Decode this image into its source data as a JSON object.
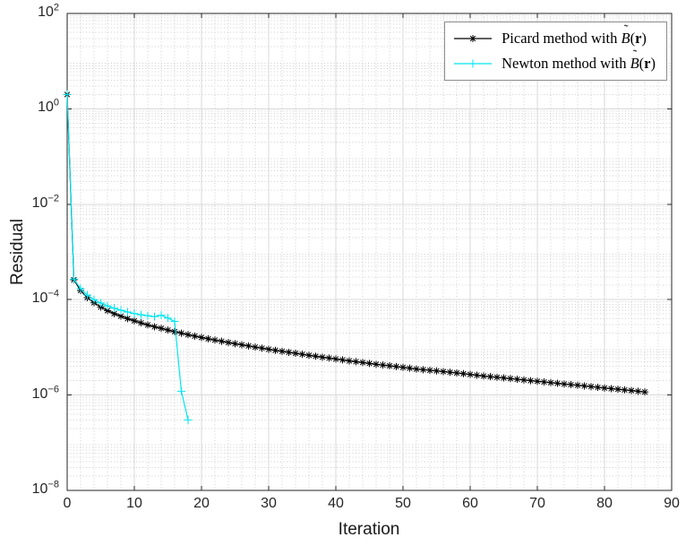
{
  "figure": {
    "background": "#ffffff",
    "axes": {
      "box_color": "#262626",
      "tick_color": "#262626",
      "label_color": "#1a1a1a",
      "major_grid_color": "#d9d9d9",
      "minor_grid_color": "#cfcfcf"
    }
  },
  "chart_data": {
    "type": "line",
    "title": "",
    "xlabel": "Iteration",
    "ylabel": "Residual",
    "y_scale": "log",
    "xlim": [
      0,
      90
    ],
    "ylim": [
      1e-08,
      100
    ],
    "x_ticks": [
      0,
      10,
      20,
      30,
      40,
      50,
      60,
      70,
      80,
      90
    ],
    "y_tick_exponents": [
      2,
      0,
      -2,
      -4,
      -6,
      -8
    ],
    "x_minor_step": 2,
    "grid": "on",
    "minor_grid": "on",
    "legend_position": "northeast",
    "series": [
      {
        "name": "picard",
        "label": "Picard method with B̃(r)",
        "label_parts": [
          {
            "t": "Picard method with ",
            "f": "roman"
          },
          {
            "t": "B",
            "f": "script",
            "accent": "˜"
          },
          {
            "t": "(",
            "f": "roman"
          },
          {
            "t": "r",
            "f": "bold"
          },
          {
            "t": ")",
            "f": "roman"
          }
        ],
        "color": "#000000",
        "marker": "asterisk",
        "x": [
          0,
          1,
          2,
          3,
          4,
          5,
          6,
          7,
          8,
          9,
          10,
          11,
          12,
          13,
          14,
          15,
          16,
          17,
          18,
          19,
          20,
          21,
          22,
          23,
          24,
          25,
          26,
          27,
          28,
          29,
          30,
          31,
          32,
          33,
          34,
          35,
          36,
          37,
          38,
          39,
          40,
          41,
          42,
          43,
          44,
          45,
          46,
          47,
          48,
          49,
          50,
          51,
          52,
          53,
          54,
          55,
          56,
          57,
          58,
          59,
          60,
          61,
          62,
          63,
          64,
          65,
          66,
          67,
          68,
          69,
          70,
          71,
          72,
          73,
          74,
          75,
          76,
          77,
          78,
          79,
          80,
          81,
          82,
          83,
          84,
          85,
          86
        ],
        "y": [
          2.0,
          0.00026,
          0.000155,
          0.00011,
          8.6e-05,
          7e-05,
          5.9e-05,
          5.1e-05,
          4.5e-05,
          4e-05,
          3.6e-05,
          3.25e-05,
          2.95e-05,
          2.7e-05,
          2.5e-05,
          2.3e-05,
          2.13e-05,
          1.98e-05,
          1.84e-05,
          1.72e-05,
          1.61e-05,
          1.51e-05,
          1.42e-05,
          1.34e-05,
          1.26e-05,
          1.19e-05,
          1.13e-05,
          1.07e-05,
          1.01e-05,
          9.6e-06,
          9.1e-06,
          8.65e-06,
          8.25e-06,
          7.85e-06,
          7.5e-06,
          7.15e-06,
          6.8e-06,
          6.5e-06,
          6.2e-06,
          5.95e-06,
          5.7e-06,
          5.45e-06,
          5.2e-06,
          5e-06,
          4.8e-06,
          4.6e-06,
          4.4e-06,
          4.25e-06,
          4.1e-06,
          3.95e-06,
          3.8e-06,
          3.65e-06,
          3.5e-06,
          3.4e-06,
          3.3e-06,
          3.2e-06,
          3.1e-06,
          3e-06,
          2.9e-06,
          2.8e-06,
          2.7e-06,
          2.6e-06,
          2.5e-06,
          2.42e-06,
          2.35e-06,
          2.28e-06,
          2.21e-06,
          2.14e-06,
          2.07e-06,
          2e-06,
          1.94e-06,
          1.88e-06,
          1.82e-06,
          1.76e-06,
          1.7e-06,
          1.65e-06,
          1.6e-06,
          1.55e-06,
          1.5e-06,
          1.45e-06,
          1.4e-06,
          1.36e-06,
          1.32e-06,
          1.28e-06,
          1.24e-06,
          1.2e-06,
          1.16e-06
        ]
      },
      {
        "name": "newton",
        "label": "Newton method with B̃(r)",
        "label_parts": [
          {
            "t": "Newton method with ",
            "f": "roman"
          },
          {
            "t": "B",
            "f": "script",
            "accent": "˜"
          },
          {
            "t": "(",
            "f": "roman"
          },
          {
            "t": "r",
            "f": "bold"
          },
          {
            "t": ")",
            "f": "roman"
          }
        ],
        "color": "#00e5f0",
        "marker": "plus",
        "x": [
          0,
          1,
          2,
          3,
          4,
          5,
          6,
          7,
          8,
          9,
          10,
          11,
          12,
          13,
          14,
          15,
          16,
          17,
          18
        ],
        "y": [
          2.0,
          0.00027,
          0.00017,
          0.000125,
          0.0001,
          8.5e-05,
          7.4e-05,
          6.6e-05,
          6e-05,
          5.5e-05,
          5.1e-05,
          4.8e-05,
          4.6e-05,
          4.4e-05,
          4.7e-05,
          4.1e-05,
          3.5e-05,
          1.2e-06,
          3e-07
        ]
      }
    ]
  }
}
